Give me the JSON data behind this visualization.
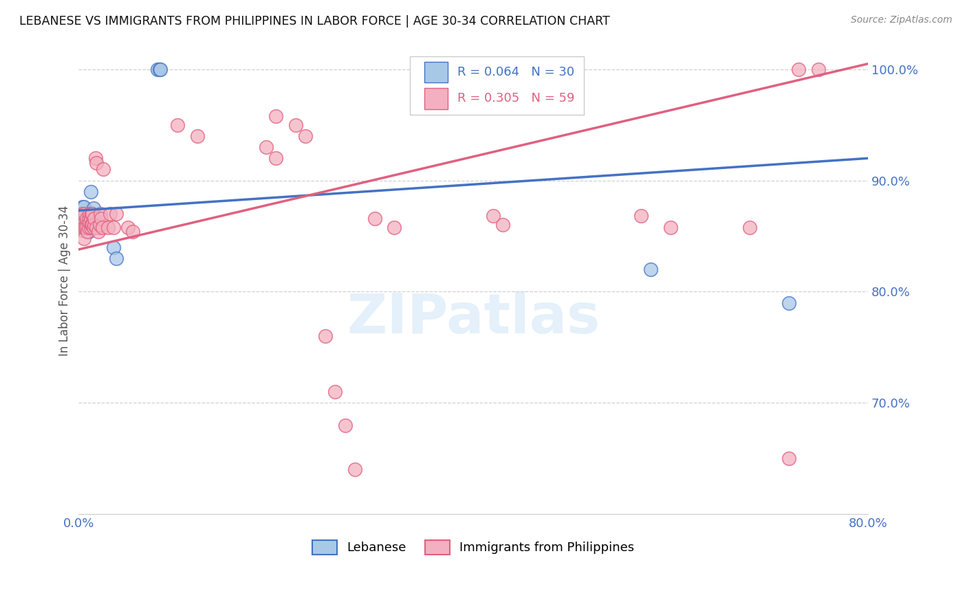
{
  "title": "LEBANESE VS IMMIGRANTS FROM PHILIPPINES IN LABOR FORCE | AGE 30-34 CORRELATION CHART",
  "source": "Source: ZipAtlas.com",
  "ylabel": "In Labor Force | Age 30-34",
  "xlim": [
    0.0,
    0.8
  ],
  "ylim": [
    0.6,
    1.02
  ],
  "xticks": [
    0.0,
    0.1,
    0.2,
    0.3,
    0.4,
    0.5,
    0.6,
    0.7,
    0.8
  ],
  "xticklabels": [
    "0.0%",
    "",
    "",
    "",
    "",
    "",
    "",
    "",
    "80.0%"
  ],
  "ytick_positions": [
    0.7,
    0.8,
    0.9,
    1.0
  ],
  "yticklabels_right": [
    "70.0%",
    "80.0%",
    "90.0%",
    "100.0%"
  ],
  "blue_R": 0.064,
  "blue_N": 30,
  "pink_R": 0.305,
  "pink_N": 59,
  "blue_color": "#a8c8e8",
  "pink_color": "#f4b0c0",
  "blue_line_color": "#4472c4",
  "pink_line_color": "#e06080",
  "legend_blue_label": "Lebanese",
  "legend_pink_label": "Immigrants from Philippines",
  "watermark": "ZIPatlas",
  "blue_x": [
    0.002,
    0.003,
    0.003,
    0.004,
    0.004,
    0.004,
    0.005,
    0.005,
    0.005,
    0.006,
    0.006,
    0.007,
    0.008,
    0.008,
    0.009,
    0.01,
    0.01,
    0.011,
    0.012,
    0.013,
    0.015,
    0.017,
    0.019,
    0.035,
    0.038,
    0.08,
    0.082,
    0.083,
    0.58,
    0.72
  ],
  "blue_y": [
    0.87,
    0.858,
    0.87,
    0.858,
    0.865,
    0.876,
    0.86,
    0.868,
    0.876,
    0.86,
    0.868,
    0.86,
    0.858,
    0.868,
    0.858,
    0.854,
    0.862,
    0.87,
    0.89,
    0.858,
    0.875,
    0.86,
    0.858,
    0.84,
    0.83,
    1.0,
    1.0,
    1.0,
    0.82,
    0.79
  ],
  "pink_x": [
    0.003,
    0.003,
    0.004,
    0.005,
    0.005,
    0.006,
    0.007,
    0.008,
    0.008,
    0.009,
    0.01,
    0.01,
    0.011,
    0.011,
    0.012,
    0.012,
    0.013,
    0.013,
    0.014,
    0.014,
    0.015,
    0.016,
    0.016,
    0.017,
    0.018,
    0.018,
    0.02,
    0.021,
    0.022,
    0.023,
    0.024,
    0.025,
    0.03,
    0.032,
    0.035,
    0.038,
    0.05,
    0.055,
    0.1,
    0.12,
    0.19,
    0.2,
    0.3,
    0.32,
    0.42,
    0.43,
    0.57,
    0.6,
    0.68,
    0.73,
    0.75,
    0.72,
    0.2,
    0.22,
    0.23,
    0.25,
    0.26,
    0.27,
    0.28
  ],
  "pink_y": [
    0.855,
    0.862,
    0.87,
    0.848,
    0.858,
    0.87,
    0.858,
    0.858,
    0.866,
    0.854,
    0.858,
    0.866,
    0.862,
    0.87,
    0.858,
    0.866,
    0.86,
    0.87,
    0.86,
    0.87,
    0.858,
    0.86,
    0.866,
    0.92,
    0.916,
    0.858,
    0.854,
    0.86,
    0.87,
    0.866,
    0.858,
    0.91,
    0.858,
    0.87,
    0.858,
    0.87,
    0.858,
    0.854,
    0.95,
    0.94,
    0.93,
    0.92,
    0.866,
    0.858,
    0.868,
    0.86,
    0.868,
    0.858,
    0.858,
    1.0,
    1.0,
    0.65,
    0.958,
    0.95,
    0.94,
    0.76,
    0.71,
    0.68,
    0.64
  ]
}
